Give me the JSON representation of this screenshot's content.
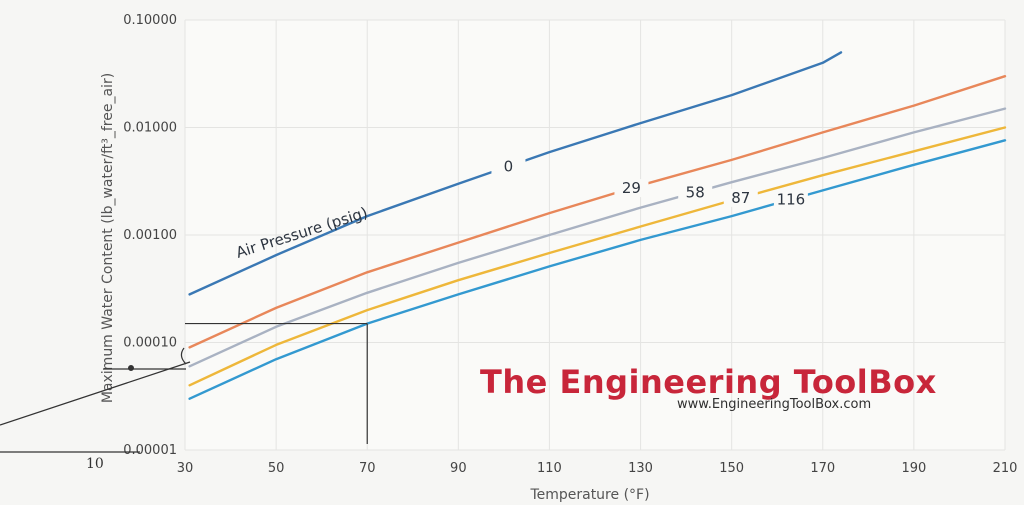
{
  "chart_data": {
    "type": "line",
    "title": "",
    "xlabel": "Temperature (°F)",
    "ylabel": "Maximum Water Content (lb_water/ft³_free_air)",
    "yscale": "log",
    "xlim": [
      30,
      210
    ],
    "ylim": [
      1e-05,
      0.1
    ],
    "x_ticks": [
      "30",
      "50",
      "70",
      "90",
      "110",
      "130",
      "150",
      "170",
      "190",
      "210"
    ],
    "y_ticks": [
      "0.00001",
      "0.00010",
      "0.00100",
      "0.01000",
      "0.10000"
    ],
    "annotation": "Air Pressure (psig)",
    "series": [
      {
        "name": "0",
        "color": "#3a78b4",
        "label_at": 101,
        "x": [
          31,
          50,
          70,
          90,
          110,
          130,
          150,
          170,
          174
        ],
        "y": [
          0.00028,
          0.00065,
          0.0015,
          0.003,
          0.0059,
          0.011,
          0.02,
          0.04,
          0.05
        ]
      },
      {
        "name": "29",
        "color": "#e8875a",
        "label_at": 128,
        "x": [
          31,
          50,
          70,
          90,
          110,
          130,
          150,
          170,
          190,
          210
        ],
        "y": [
          9e-05,
          0.00021,
          0.00045,
          0.00085,
          0.0016,
          0.0029,
          0.005,
          0.009,
          0.016,
          0.03
        ]
      },
      {
        "name": "58",
        "color": "#a9b2c2",
        "label_at": 142,
        "x": [
          31,
          50,
          70,
          90,
          110,
          130,
          150,
          170,
          190,
          210
        ],
        "y": [
          6e-05,
          0.00014,
          0.00029,
          0.00055,
          0.001,
          0.0018,
          0.0031,
          0.0052,
          0.009,
          0.015
        ]
      },
      {
        "name": "87",
        "color": "#eeb73a",
        "label_at": 152,
        "x": [
          31,
          50,
          70,
          90,
          110,
          130,
          150,
          170,
          190,
          210
        ],
        "y": [
          4e-05,
          9.5e-05,
          0.0002,
          0.00038,
          0.00068,
          0.0012,
          0.0021,
          0.0036,
          0.006,
          0.01
        ]
      },
      {
        "name": "116",
        "color": "#3399d0",
        "label_at": 163,
        "x": [
          31,
          50,
          70,
          90,
          110,
          130,
          150,
          170,
          190,
          210
        ],
        "y": [
          3e-05,
          7e-05,
          0.00015,
          0.00028,
          0.00051,
          0.0009,
          0.0015,
          0.0026,
          0.0045,
          0.0076
        ]
      }
    ]
  },
  "brand": {
    "name": "The Engineering ToolBox",
    "url": "www.EngineeringToolBox.com"
  },
  "handwriting": {
    "mark": "10"
  }
}
